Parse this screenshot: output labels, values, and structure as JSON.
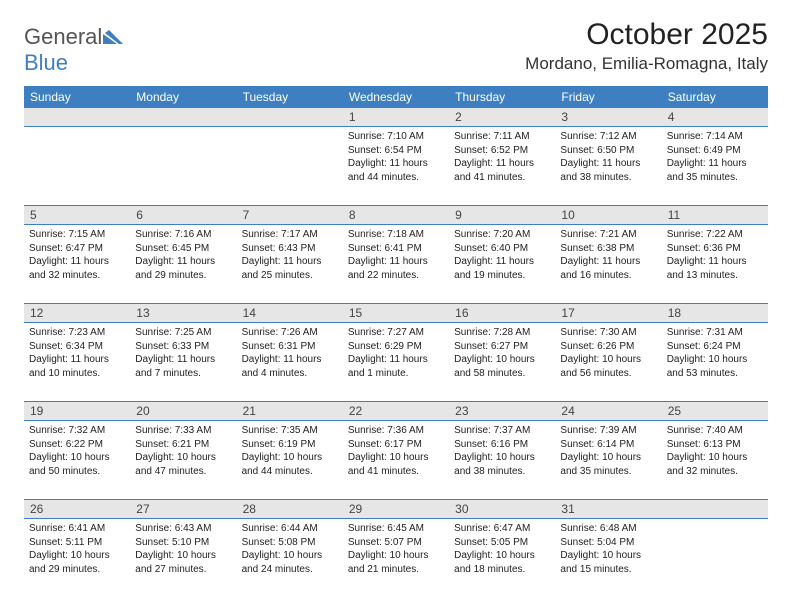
{
  "logo": {
    "textGeneral": "General",
    "textBlue": "Blue"
  },
  "title": "October 2025",
  "location": "Mordano, Emilia-Romagna, Italy",
  "colors": {
    "headerBar": "#3d7fc1",
    "dayNumBg": "#e6e6e6",
    "weekDivider": "#3d7fc1",
    "pageBg": "#ffffff",
    "logoBlue": "#3d7fc1",
    "bodyText": "#222222"
  },
  "layout": {
    "pageWidth": 792,
    "pageHeight": 612,
    "columns": 7,
    "weekdayFontSize": 12,
    "dayNumFontSize": 12,
    "detailFontSize": 10
  },
  "weekdays": [
    "Sunday",
    "Monday",
    "Tuesday",
    "Wednesday",
    "Thursday",
    "Friday",
    "Saturday"
  ],
  "weeks": [
    [
      null,
      null,
      null,
      {
        "n": "1",
        "sunrise": "7:10 AM",
        "sunset": "6:54 PM",
        "daylight": "11 hours and 44 minutes."
      },
      {
        "n": "2",
        "sunrise": "7:11 AM",
        "sunset": "6:52 PM",
        "daylight": "11 hours and 41 minutes."
      },
      {
        "n": "3",
        "sunrise": "7:12 AM",
        "sunset": "6:50 PM",
        "daylight": "11 hours and 38 minutes."
      },
      {
        "n": "4",
        "sunrise": "7:14 AM",
        "sunset": "6:49 PM",
        "daylight": "11 hours and 35 minutes."
      }
    ],
    [
      {
        "n": "5",
        "sunrise": "7:15 AM",
        "sunset": "6:47 PM",
        "daylight": "11 hours and 32 minutes."
      },
      {
        "n": "6",
        "sunrise": "7:16 AM",
        "sunset": "6:45 PM",
        "daylight": "11 hours and 29 minutes."
      },
      {
        "n": "7",
        "sunrise": "7:17 AM",
        "sunset": "6:43 PM",
        "daylight": "11 hours and 25 minutes."
      },
      {
        "n": "8",
        "sunrise": "7:18 AM",
        "sunset": "6:41 PM",
        "daylight": "11 hours and 22 minutes."
      },
      {
        "n": "9",
        "sunrise": "7:20 AM",
        "sunset": "6:40 PM",
        "daylight": "11 hours and 19 minutes."
      },
      {
        "n": "10",
        "sunrise": "7:21 AM",
        "sunset": "6:38 PM",
        "daylight": "11 hours and 16 minutes."
      },
      {
        "n": "11",
        "sunrise": "7:22 AM",
        "sunset": "6:36 PM",
        "daylight": "11 hours and 13 minutes."
      }
    ],
    [
      {
        "n": "12",
        "sunrise": "7:23 AM",
        "sunset": "6:34 PM",
        "daylight": "11 hours and 10 minutes."
      },
      {
        "n": "13",
        "sunrise": "7:25 AM",
        "sunset": "6:33 PM",
        "daylight": "11 hours and 7 minutes."
      },
      {
        "n": "14",
        "sunrise": "7:26 AM",
        "sunset": "6:31 PM",
        "daylight": "11 hours and 4 minutes."
      },
      {
        "n": "15",
        "sunrise": "7:27 AM",
        "sunset": "6:29 PM",
        "daylight": "11 hours and 1 minute."
      },
      {
        "n": "16",
        "sunrise": "7:28 AM",
        "sunset": "6:27 PM",
        "daylight": "10 hours and 58 minutes."
      },
      {
        "n": "17",
        "sunrise": "7:30 AM",
        "sunset": "6:26 PM",
        "daylight": "10 hours and 56 minutes."
      },
      {
        "n": "18",
        "sunrise": "7:31 AM",
        "sunset": "6:24 PM",
        "daylight": "10 hours and 53 minutes."
      }
    ],
    [
      {
        "n": "19",
        "sunrise": "7:32 AM",
        "sunset": "6:22 PM",
        "daylight": "10 hours and 50 minutes."
      },
      {
        "n": "20",
        "sunrise": "7:33 AM",
        "sunset": "6:21 PM",
        "daylight": "10 hours and 47 minutes."
      },
      {
        "n": "21",
        "sunrise": "7:35 AM",
        "sunset": "6:19 PM",
        "daylight": "10 hours and 44 minutes."
      },
      {
        "n": "22",
        "sunrise": "7:36 AM",
        "sunset": "6:17 PM",
        "daylight": "10 hours and 41 minutes."
      },
      {
        "n": "23",
        "sunrise": "7:37 AM",
        "sunset": "6:16 PM",
        "daylight": "10 hours and 38 minutes."
      },
      {
        "n": "24",
        "sunrise": "7:39 AM",
        "sunset": "6:14 PM",
        "daylight": "10 hours and 35 minutes."
      },
      {
        "n": "25",
        "sunrise": "7:40 AM",
        "sunset": "6:13 PM",
        "daylight": "10 hours and 32 minutes."
      }
    ],
    [
      {
        "n": "26",
        "sunrise": "6:41 AM",
        "sunset": "5:11 PM",
        "daylight": "10 hours and 29 minutes."
      },
      {
        "n": "27",
        "sunrise": "6:43 AM",
        "sunset": "5:10 PM",
        "daylight": "10 hours and 27 minutes."
      },
      {
        "n": "28",
        "sunrise": "6:44 AM",
        "sunset": "5:08 PM",
        "daylight": "10 hours and 24 minutes."
      },
      {
        "n": "29",
        "sunrise": "6:45 AM",
        "sunset": "5:07 PM",
        "daylight": "10 hours and 21 minutes."
      },
      {
        "n": "30",
        "sunrise": "6:47 AM",
        "sunset": "5:05 PM",
        "daylight": "10 hours and 18 minutes."
      },
      {
        "n": "31",
        "sunrise": "6:48 AM",
        "sunset": "5:04 PM",
        "daylight": "10 hours and 15 minutes."
      },
      null
    ]
  ]
}
